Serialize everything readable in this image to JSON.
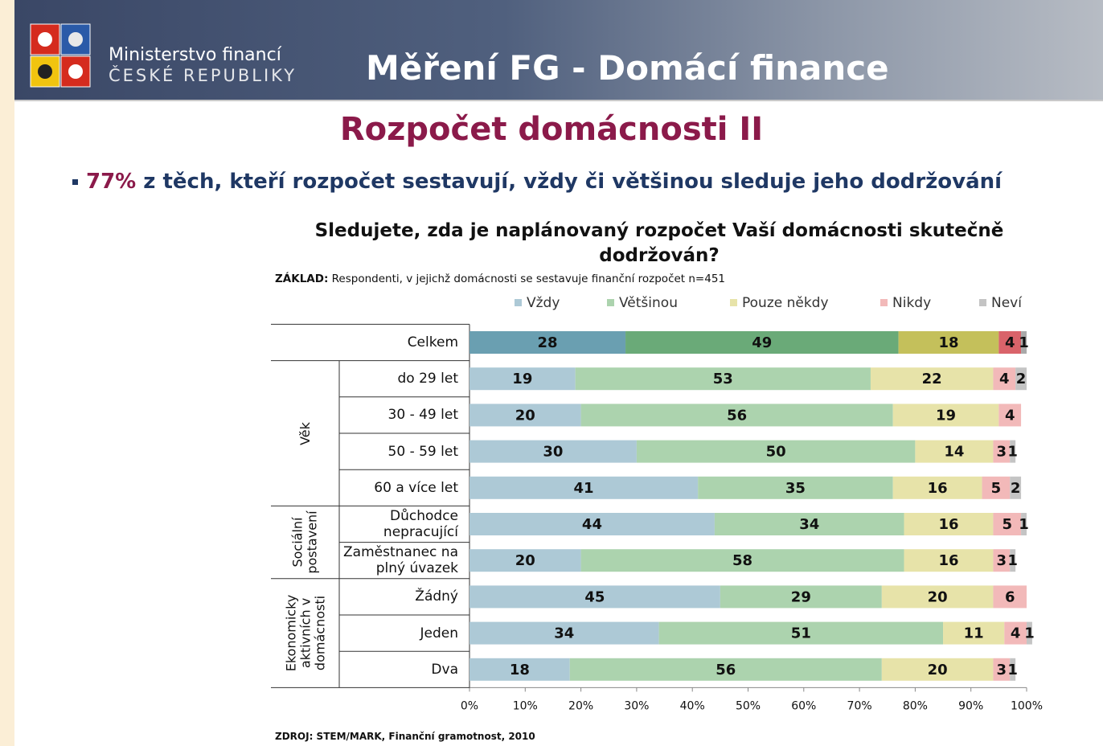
{
  "header": {
    "ministry_line1": "Ministerstvo financí",
    "ministry_line2": "ČESKÉ REPUBLIKY",
    "title": "Měření FG - Domácí finance"
  },
  "slide_title": "Rozpočet domácnosti II",
  "bullet": {
    "highlight": "77%",
    "text": "z těch, kteří rozpočet sestavují, vždy či většinou sleduje jeho dodržování"
  },
  "chart_data": {
    "type": "bar",
    "orientation": "horizontal",
    "stacked": true,
    "title": "Sledujete, zda je naplánovaný rozpočet Vaší domácnosti skutečně dodržován?",
    "base_label": "ZÁKLAD:",
    "base_text": "Respondenti, v jejichž domácnosti se sestavuje finanční rozpočet n=451",
    "source": "ZDROJ: STEM/MARK, Finanční gramotnost, 2010",
    "categories": [
      "Celkem",
      "do 29 let",
      "30 - 49 let",
      "50 - 59 let",
      "60 a více let",
      "Důchodce nepracující",
      "Zaměstnanec na plný úvazek",
      "Žádný",
      "Jeden",
      "Dva"
    ],
    "groups": [
      {
        "name": "Věk",
        "from": 1,
        "to": 4
      },
      {
        "name": "Sociální postavení",
        "from": 5,
        "to": 6
      },
      {
        "name": "Ekonomicky aktivních v domácnosti",
        "from": 7,
        "to": 9
      }
    ],
    "highlighted_categories": [
      0
    ],
    "series": [
      {
        "name": "Vždy",
        "color": "#adc9d6",
        "highlight_color": "#6a9fb1",
        "values": [
          28,
          19,
          20,
          30,
          41,
          44,
          20,
          45,
          34,
          18
        ]
      },
      {
        "name": "Většinou",
        "color": "#acd3ae",
        "highlight_color": "#6aaa78",
        "values": [
          49,
          53,
          56,
          50,
          35,
          34,
          58,
          29,
          51,
          56
        ]
      },
      {
        "name": "Pouze někdy",
        "color": "#e7e3a9",
        "highlight_color": "#c4c05b",
        "values": [
          18,
          22,
          19,
          14,
          16,
          16,
          16,
          20,
          11,
          20
        ]
      },
      {
        "name": "Nikdy",
        "color": "#f2b9b9",
        "highlight_color": "#d9636a",
        "values": [
          4,
          4,
          4,
          3,
          5,
          5,
          3,
          6,
          4,
          3
        ]
      },
      {
        "name": "Neví",
        "color": "#c4c4c4",
        "highlight_color": "#a9a9a9",
        "values": [
          1,
          2,
          null,
          1,
          2,
          1,
          1,
          null,
          1,
          1
        ]
      }
    ],
    "xlim": [
      0,
      100
    ],
    "xticks": [
      {
        "value": 0,
        "label": "0%"
      },
      {
        "value": 10,
        "label": "10%"
      },
      {
        "value": 20,
        "label": "20%"
      },
      {
        "value": 30,
        "label": "30%"
      },
      {
        "value": 40,
        "label": "40%"
      },
      {
        "value": 50,
        "label": "50%"
      },
      {
        "value": 60,
        "label": "60%"
      },
      {
        "value": 70,
        "label": "70%"
      },
      {
        "value": 80,
        "label": "80%"
      },
      {
        "value": 90,
        "label": "90%"
      },
      {
        "value": 100,
        "label": "100%"
      }
    ],
    "legend": "top"
  }
}
